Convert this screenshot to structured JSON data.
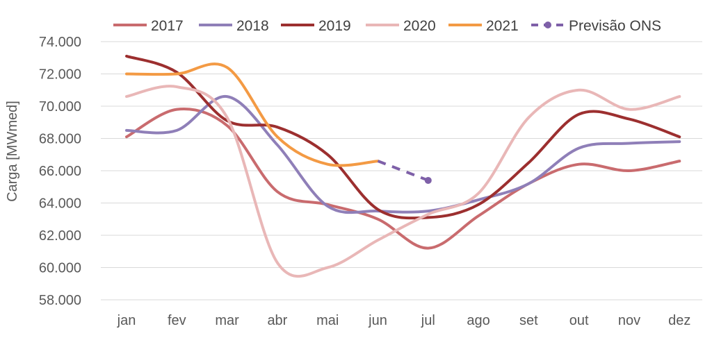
{
  "chart_data": {
    "type": "line",
    "title": "",
    "xlabel": "",
    "ylabel": "Carga [MWmed]",
    "categories": [
      "jan",
      "fev",
      "mar",
      "abr",
      "mai",
      "jun",
      "jul",
      "ago",
      "set",
      "out",
      "nov",
      "dez"
    ],
    "ylim": [
      58000,
      74000
    ],
    "yticks": [
      58000,
      60000,
      62000,
      64000,
      66000,
      68000,
      70000,
      72000,
      74000
    ],
    "ytick_labels": [
      "58.000",
      "60.000",
      "62.000",
      "64.000",
      "66.000",
      "68.000",
      "70.000",
      "72.000",
      "74.000"
    ],
    "grid": "horizontal",
    "legend_position": "top",
    "smooth": true,
    "series": [
      {
        "name": "2017",
        "color": "#c96b6e",
        "dashed": false,
        "markers": false,
        "values": [
          68100,
          69800,
          68800,
          64700,
          63900,
          63000,
          61200,
          63200,
          65200,
          66400,
          66000,
          66600
        ]
      },
      {
        "name": "2018",
        "color": "#8f7fb8",
        "dashed": false,
        "markers": false,
        "values": [
          68500,
          68500,
          70600,
          67600,
          63800,
          63500,
          63500,
          64200,
          65200,
          67400,
          67700,
          67800
        ]
      },
      {
        "name": "2019",
        "color": "#9c2f2f",
        "dashed": false,
        "markers": false,
        "values": [
          73100,
          72100,
          69100,
          68700,
          67000,
          63600,
          63100,
          63900,
          66500,
          69500,
          69200,
          68100
        ]
      },
      {
        "name": "2020",
        "color": "#e9b7b7",
        "dashed": false,
        "markers": false,
        "values": [
          70600,
          71200,
          69300,
          60300,
          60000,
          61700,
          63300,
          64600,
          69300,
          71000,
          69800,
          70600
        ]
      },
      {
        "name": "2021",
        "color": "#f39a44",
        "dashed": false,
        "markers": false,
        "values": [
          72000,
          72000,
          72400,
          68100,
          66400,
          66600,
          null,
          null,
          null,
          null,
          null,
          null
        ]
      },
      {
        "name": "Previsão ONS",
        "color": "#7e60a8",
        "dashed": true,
        "markers": true,
        "values": [
          null,
          null,
          null,
          null,
          null,
          66600,
          65400,
          null,
          null,
          null,
          null,
          null
        ]
      }
    ]
  }
}
